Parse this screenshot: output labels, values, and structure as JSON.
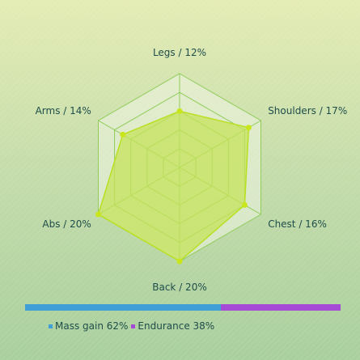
{
  "chart_data": {
    "type": "radar",
    "categories": [
      "Legs",
      "Shoulders",
      "Chest",
      "Back",
      "Abs",
      "Arms"
    ],
    "axis_labels": [
      "Legs / 12%",
      "Shoulders / 17%",
      "Chest / 16%",
      "Back / 20%",
      "Abs / 20%",
      "Arms / 14%"
    ],
    "values": [
      12,
      17,
      16,
      20,
      20,
      14
    ],
    "rmax": 20,
    "rings": 5,
    "colors": {
      "area_fill": "#c6e35a",
      "area_stroke": "#b9e021",
      "grid": "#8fcc5a",
      "grid_fill": "#eef4e4",
      "point": "#c8e61b"
    },
    "split": [
      {
        "name": "Mass gain",
        "percent": 62,
        "label": "Mass gain 62%",
        "color": "#3f9fd6"
      },
      {
        "name": "Endurance",
        "percent": 38,
        "label": "Endurance 38%",
        "color": "#a64bd6"
      }
    ]
  }
}
